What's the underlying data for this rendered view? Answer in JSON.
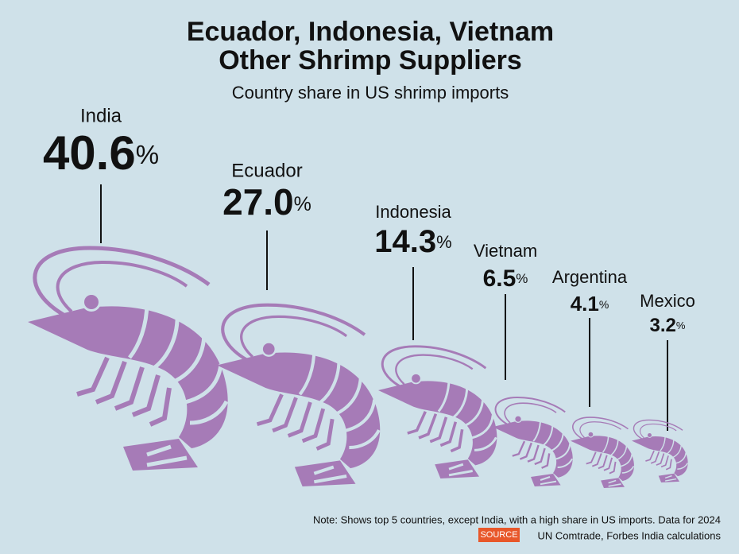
{
  "chart_data": {
    "type": "pictorial",
    "title": [
      "Ecuador, Indonesia, Vietnam",
      "Other Shrimp Suppliers"
    ],
    "subtitle": "Country share in US shrimp imports",
    "categories": [
      "India",
      "Ecuador",
      "Indonesia",
      "Vietnam",
      "Argentina",
      "Mexico"
    ],
    "values": [
      40.6,
      27.0,
      14.3,
      6.5,
      4.1,
      3.2
    ],
    "value_labels": [
      "40.6%",
      "27.0%",
      "14.3%",
      "6.5%",
      "4.1%",
      "3.2%"
    ],
    "color": "#a67bb7",
    "note": "Note: Shows top 5 countries, except India, with a high share in US imports. Data for 2024",
    "source_label": "SOURCE",
    "source": "UN Comtrade, Forbes India calculations"
  }
}
